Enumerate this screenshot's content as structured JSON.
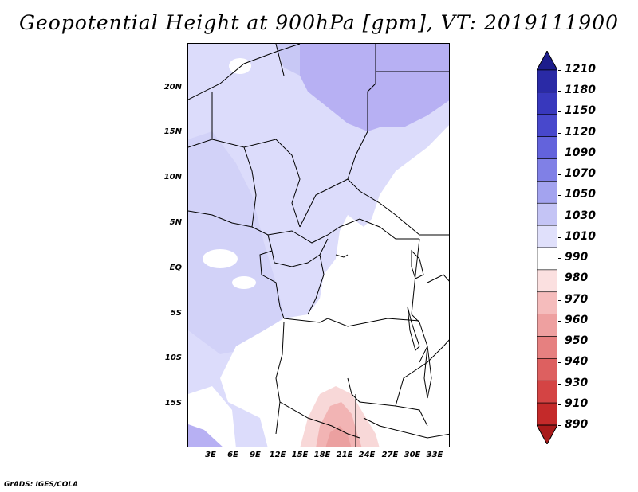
{
  "title": "Geopotential Height at 900hPa [gpm], VT: 2019111900",
  "footer": "GrADS: IGES/COLA",
  "map": {
    "lat_labels": [
      "20N",
      "15N",
      "10N",
      "5N",
      "EQ",
      "5S",
      "10S",
      "15S"
    ],
    "lon_labels": [
      "3E",
      "6E",
      "9E",
      "12E",
      "15E",
      "18E",
      "21E",
      "24E",
      "27E",
      "30E",
      "33E"
    ]
  },
  "colorbar": {
    "labels": [
      "1210",
      "1180",
      "1150",
      "1120",
      "1090",
      "1070",
      "1050",
      "1030",
      "1010",
      "990",
      "980",
      "970",
      "960",
      "950",
      "940",
      "930",
      "910",
      "890"
    ],
    "colors": [
      "#1d1d8c",
      "#2a2aa6",
      "#3838bd",
      "#4848cc",
      "#6363dc",
      "#8080e6",
      "#a3a3ef",
      "#c4c4f5",
      "#e0e0fb",
      "#ffffff",
      "#fbe0e0",
      "#f5bcbc",
      "#eea0a0",
      "#e68080",
      "#dd6060",
      "#d44444",
      "#c42a2a",
      "#a81a1a"
    ]
  },
  "colors": {
    "light_blue": "#dcdcfb",
    "mid_blue": "#c8c8f5",
    "purple": "#b0a8f4",
    "pink": "#f8d4d4",
    "red": "#f0a0a0",
    "deep_red": "#e88888"
  }
}
